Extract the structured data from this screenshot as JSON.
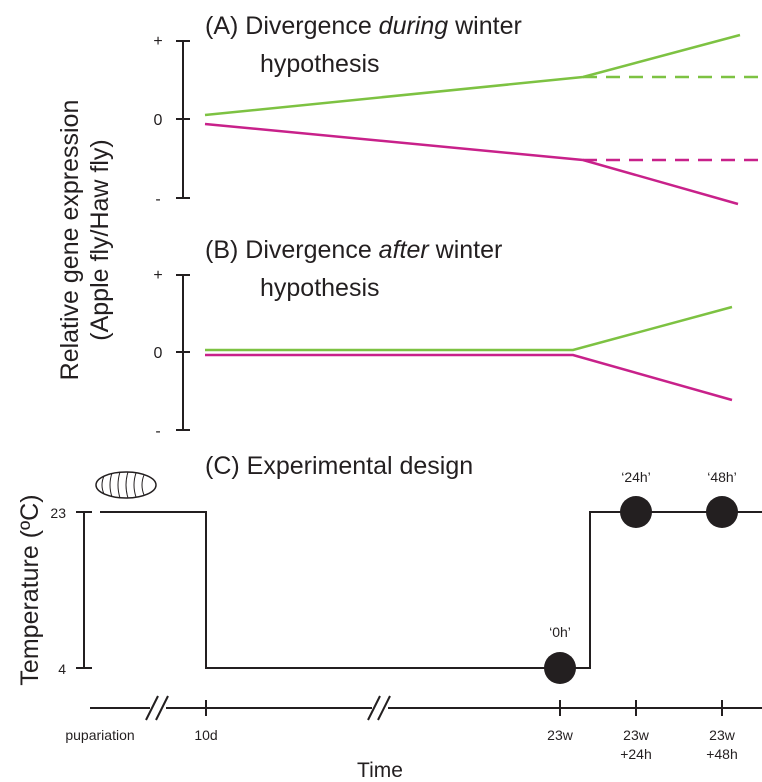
{
  "y_axis_label": [
    "Relative gene expression",
    "(Apple fly/Haw fly)"
  ],
  "panels": [
    {
      "title": {
        "prefix": "(A) Divergence ",
        "emphasis": "during",
        "suffix": " winter",
        "line2": "hypothesis"
      },
      "ticks": [
        "+",
        "0",
        "-"
      ]
    },
    {
      "title": {
        "prefix": "(B) Divergence ",
        "emphasis": "after",
        "suffix": " winter",
        "line2": "hypothesis"
      },
      "ticks": [
        "+",
        "0",
        "-"
      ]
    }
  ],
  "design": {
    "title": "(C) Experimental design",
    "y_label": "Temperature (ºC)",
    "y_ticks": [
      "23",
      "4"
    ],
    "samples": [
      "‘0h’",
      "‘24h’",
      "‘48h’"
    ],
    "x_labels": [
      [
        "pupariation"
      ],
      [
        "10d"
      ],
      [
        "23w"
      ],
      [
        "23w",
        "+24h"
      ],
      [
        "23w",
        "+48h"
      ]
    ],
    "x_title": "Time"
  }
}
